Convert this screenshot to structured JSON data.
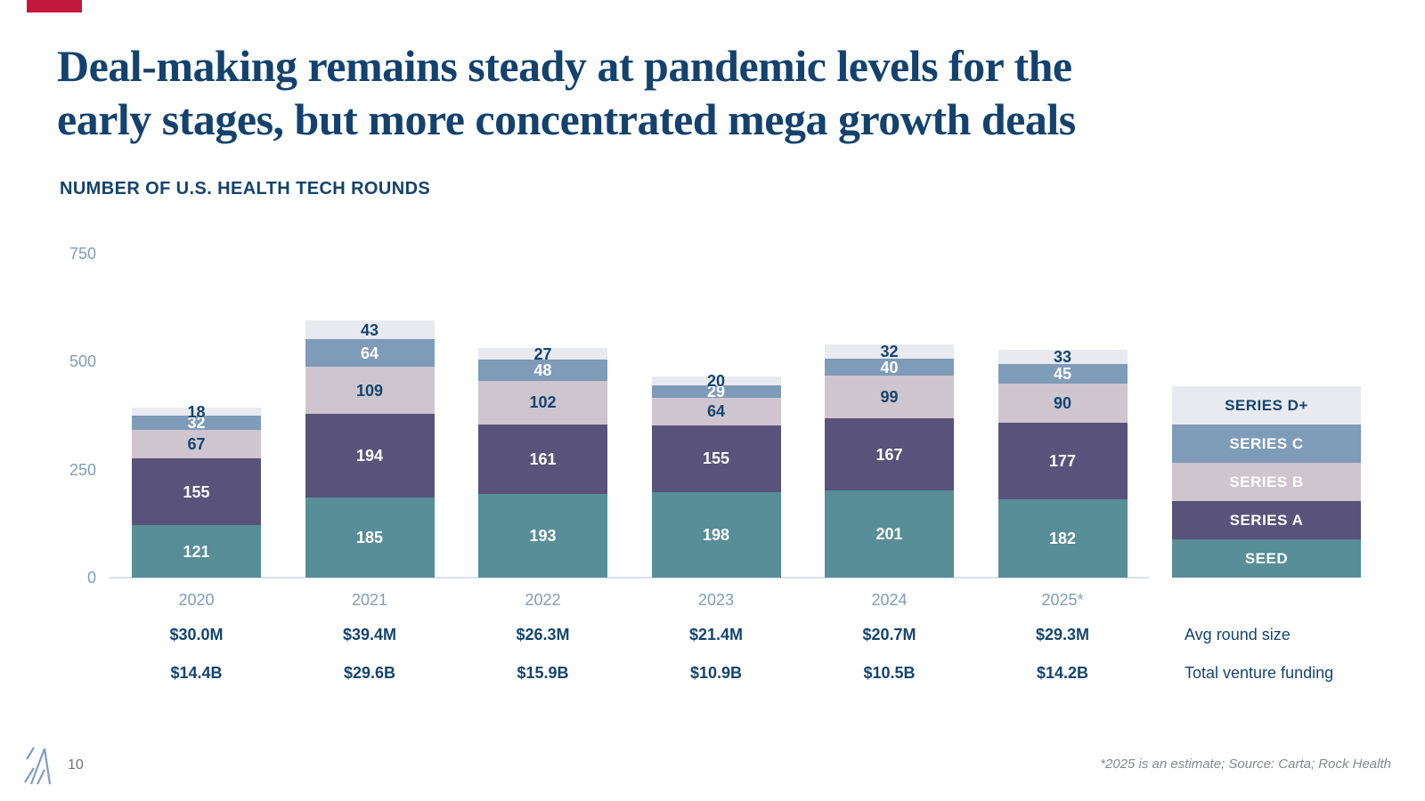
{
  "slide": {
    "title_line1": "Deal-making remains steady at pandemic levels for the",
    "title_line2": "early stages, but more concentrated mega growth deals",
    "subtitle": "NUMBER OF U.S. HEALTH TECH ROUNDS",
    "page_number": "10",
    "footnote": "*2025 is an estimate; Source: Carta; Rock Health",
    "accent_color": "#C4183C",
    "title_color": "#14426E"
  },
  "chart_data": {
    "type": "bar",
    "stacked": true,
    "title": "NUMBER OF U.S. HEALTH TECH ROUNDS",
    "categories": [
      "2020",
      "2021",
      "2022",
      "2023",
      "2024",
      "2025*"
    ],
    "series": [
      {
        "name": "SEED",
        "color": "#578E98",
        "label_color": "#FFFFFF",
        "values": [
          121,
          185,
          193,
          198,
          201,
          182
        ]
      },
      {
        "name": "SERIES A",
        "color": "#59527A",
        "label_color": "#FFFFFF",
        "values": [
          155,
          194,
          161,
          155,
          167,
          177
        ]
      },
      {
        "name": "SERIES B",
        "color": "#CEC5CE",
        "label_color": "#14456F",
        "values": [
          67,
          109,
          102,
          64,
          99,
          90
        ]
      },
      {
        "name": "SERIES C",
        "color": "#7E9BB8",
        "label_color": "#FFFFFF",
        "values": [
          32,
          64,
          48,
          29,
          40,
          45
        ]
      },
      {
        "name": "SERIES D+",
        "color": "#E8EAF0",
        "label_color": "#14456F",
        "values": [
          18,
          43,
          27,
          20,
          32,
          33
        ]
      }
    ],
    "totals": [
      393,
      595,
      531,
      466,
      539,
      527
    ],
    "ylim": [
      0,
      750
    ],
    "yticks": [
      0,
      250,
      500,
      750
    ],
    "grid": false,
    "legend_position": "right",
    "legend_order_top_to_bottom": [
      "SERIES D+",
      "SERIES C",
      "SERIES B",
      "SERIES A",
      "SEED"
    ],
    "legend_label_colors": {
      "SERIES D+": "#14456F",
      "SERIES C": "#FFFFFF",
      "SERIES B": "#FFFFFF",
      "SERIES A": "#FFFFFF",
      "SEED": "#FFFFFF"
    }
  },
  "bottom_rows": {
    "avg_round_size": {
      "label": "Avg round size",
      "values": [
        "$30.0M",
        "$39.4M",
        "$26.3M",
        "$21.4M",
        "$20.7M",
        "$29.3M"
      ]
    },
    "total_venture_funding": {
      "label": "Total venture funding",
      "values": [
        "$14.4B",
        "$29.6B",
        "$15.9B",
        "$10.9B",
        "$10.5B",
        "$14.2B"
      ]
    }
  }
}
